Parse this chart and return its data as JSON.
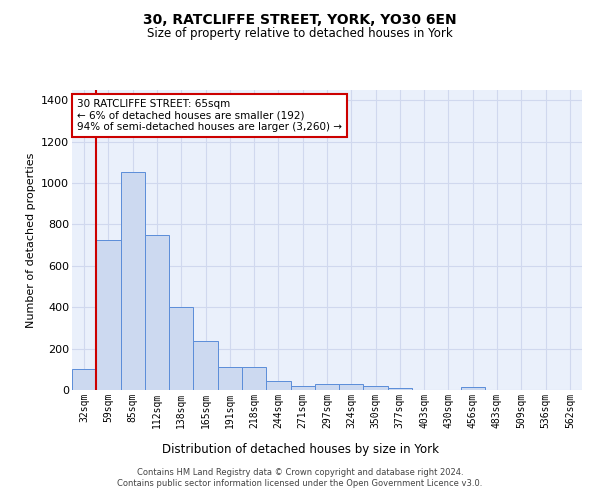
{
  "title": "30, RATCLIFFE STREET, YORK, YO30 6EN",
  "subtitle": "Size of property relative to detached houses in York",
  "xlabel": "Distribution of detached houses by size in York",
  "ylabel": "Number of detached properties",
  "categories": [
    "32sqm",
    "59sqm",
    "85sqm",
    "112sqm",
    "138sqm",
    "165sqm",
    "191sqm",
    "218sqm",
    "244sqm",
    "271sqm",
    "297sqm",
    "324sqm",
    "350sqm",
    "377sqm",
    "403sqm",
    "430sqm",
    "456sqm",
    "483sqm",
    "509sqm",
    "536sqm",
    "562sqm"
  ],
  "values": [
    100,
    725,
    1055,
    750,
    400,
    235,
    110,
    110,
    45,
    20,
    27,
    27,
    18,
    10,
    0,
    0,
    13,
    0,
    0,
    0,
    0
  ],
  "bar_color": "#ccd9f0",
  "bar_edge_color": "#5b8dd9",
  "vline_x": 0.5,
  "vline_color": "#cc0000",
  "annotation_box_text": "30 RATCLIFFE STREET: 65sqm\n← 6% of detached houses are smaller (192)\n94% of semi-detached houses are larger (3,260) →",
  "annotation_box_edge_color": "#cc0000",
  "annotation_box_facecolor": "#ffffff",
  "ylim": [
    0,
    1450
  ],
  "yticks": [
    0,
    200,
    400,
    600,
    800,
    1000,
    1200,
    1400
  ],
  "background_color": "#eaf0fb",
  "grid_color": "#d0d8ee",
  "footer_line1": "Contains HM Land Registry data © Crown copyright and database right 2024.",
  "footer_line2": "Contains public sector information licensed under the Open Government Licence v3.0."
}
